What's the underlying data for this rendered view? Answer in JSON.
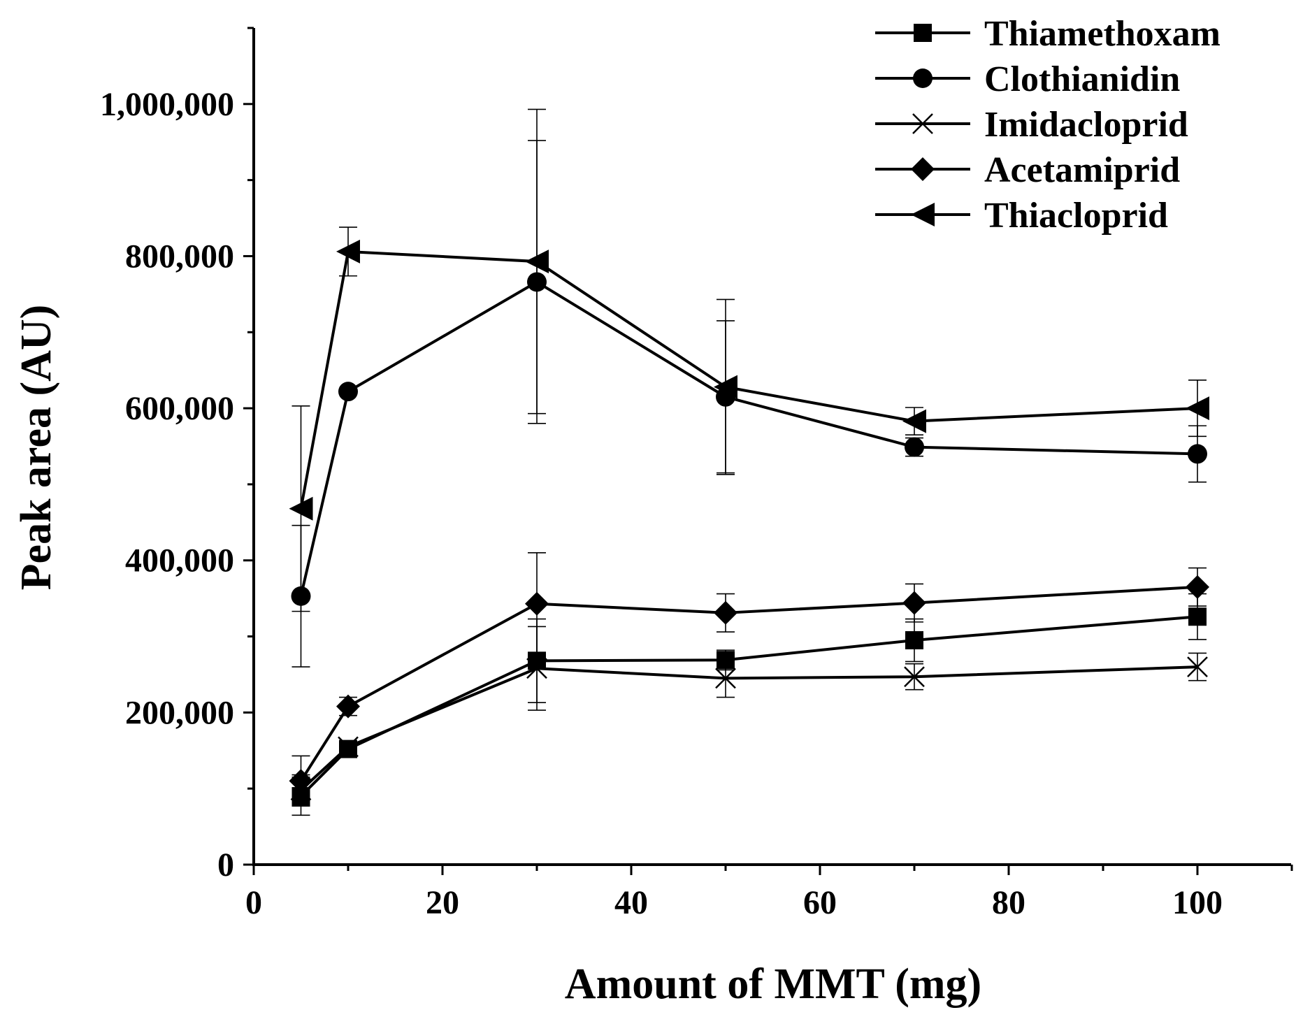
{
  "chart_data": {
    "type": "line",
    "title": "",
    "xlabel": "Amount of MMT (mg)",
    "ylabel": "Peak area (AU)",
    "xlim": [
      0,
      110
    ],
    "ylim": [
      0,
      1100000
    ],
    "xticks": [
      0,
      20,
      40,
      60,
      80,
      100
    ],
    "xtick_labels": [
      "0",
      "20",
      "40",
      "60",
      "80",
      "100"
    ],
    "yticks": [
      0,
      200000,
      400000,
      600000,
      800000,
      1000000
    ],
    "ytick_labels": [
      "0",
      "200,000",
      "400,000",
      "600,000",
      "800,000",
      "1,000,000"
    ],
    "legend_position": "top-right",
    "x": [
      5,
      10,
      30,
      50,
      70,
      100
    ],
    "series": [
      {
        "name": "Thiamethoxam",
        "marker": "square",
        "values": [
          90000,
          152000,
          268000,
          269000,
          295000,
          326000
        ],
        "errors": [
          25000,
          6000,
          55000,
          13000,
          28000,
          30000
        ]
      },
      {
        "name": "Clothianidin",
        "marker": "circle",
        "values": [
          353000,
          622000,
          766000,
          615000,
          549000,
          540000
        ],
        "errors": [
          93000,
          0,
          186000,
          100000,
          12000,
          37000
        ]
      },
      {
        "name": "Imidacloprid",
        "marker": "x",
        "values": [
          98000,
          155000,
          258000,
          245000,
          247000,
          260000
        ],
        "errors": [
          20000,
          5000,
          55000,
          25000,
          17000,
          18000
        ]
      },
      {
        "name": "Acetamiprid",
        "marker": "diamond",
        "values": [
          110000,
          208000,
          343000,
          331000,
          344000,
          365000
        ],
        "errors": [
          33000,
          12000,
          67000,
          25000,
          25000,
          25000
        ]
      },
      {
        "name": "Thiacloprid",
        "marker": "triangle-left",
        "values": [
          468000,
          806000,
          793000,
          628000,
          583000,
          600000
        ],
        "errors": [
          135000,
          32000,
          200000,
          115000,
          18000,
          37000
        ]
      }
    ]
  }
}
